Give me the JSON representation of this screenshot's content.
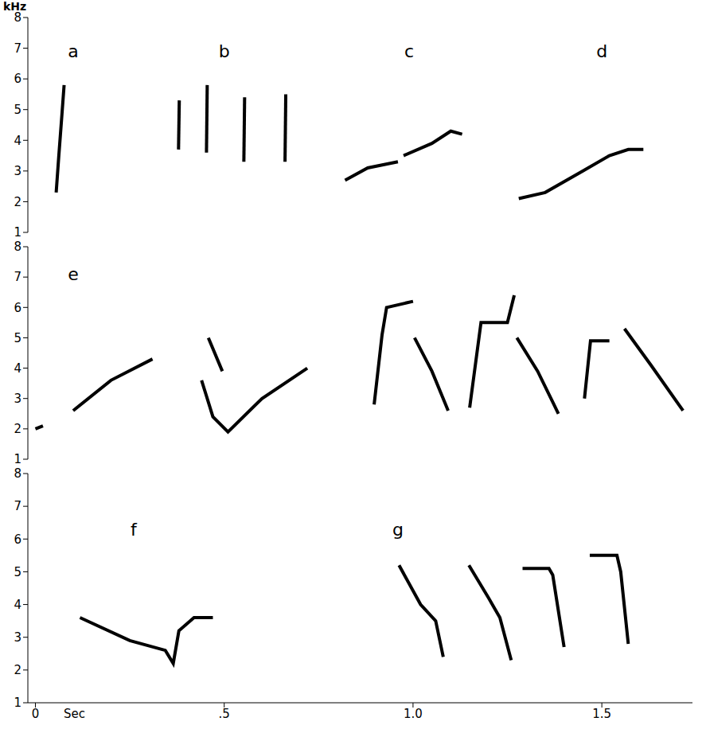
{
  "chart_data": [
    {
      "type": "line",
      "ylabel": "kHz",
      "xlim": [
        -0.02,
        1.74
      ],
      "ylim": [
        1,
        8
      ],
      "yticks": [
        1,
        2,
        3,
        4,
        5,
        6,
        7,
        8
      ],
      "tick_labels": "y",
      "annotations": [
        {
          "text": "a",
          "x": 0.1,
          "y": 6.9
        },
        {
          "text": "b",
          "x": 0.5,
          "y": 6.9
        },
        {
          "text": "c",
          "x": 0.99,
          "y": 6.9
        },
        {
          "text": "d",
          "x": 1.5,
          "y": 6.9
        }
      ],
      "series": [
        {
          "color": "#000000",
          "x": [
            0.055,
            0.062,
            0.07,
            0.076
          ],
          "values": [
            2.3,
            3.5,
            4.8,
            5.8
          ]
        },
        {
          "color": "#000000",
          "x": [
            0.379,
            0.381
          ],
          "values": [
            3.7,
            5.3
          ]
        },
        {
          "color": "#000000",
          "x": [
            0.453,
            0.455
          ],
          "values": [
            3.6,
            5.8
          ]
        },
        {
          "color": "#000000",
          "x": [
            0.552,
            0.554
          ],
          "values": [
            3.3,
            5.4
          ]
        },
        {
          "color": "#000000",
          "x": [
            0.661,
            0.663
          ],
          "values": [
            3.3,
            5.5
          ]
        },
        {
          "color": "#000000",
          "x": [
            0.82,
            0.88,
            0.96
          ],
          "values": [
            2.7,
            3.1,
            3.3
          ]
        },
        {
          "color": "#000000",
          "x": [
            0.975,
            1.05,
            1.1,
            1.13
          ],
          "values": [
            3.5,
            3.9,
            4.3,
            4.2
          ]
        },
        {
          "color": "#000000",
          "x": [
            1.28,
            1.35,
            1.45,
            1.52,
            1.57,
            1.61
          ],
          "values": [
            2.1,
            2.3,
            3.0,
            3.5,
            3.7,
            3.7
          ]
        }
      ]
    },
    {
      "type": "line",
      "xlim": [
        -0.02,
        1.74
      ],
      "ylim": [
        1,
        8
      ],
      "yticks": [
        1,
        2,
        3,
        4,
        5,
        6,
        7,
        8
      ],
      "tick_labels": "y",
      "annotations": [
        {
          "text": "e",
          "x": 0.1,
          "y": 7.1
        }
      ],
      "series": [
        {
          "color": "#000000",
          "x": [
            0.0,
            0.02
          ],
          "values": [
            2.0,
            2.1
          ]
        },
        {
          "color": "#000000",
          "x": [
            0.1,
            0.2,
            0.31
          ],
          "values": [
            2.6,
            3.6,
            4.3
          ]
        },
        {
          "color": "#000000",
          "x": [
            0.458,
            0.495
          ],
          "values": [
            5.0,
            3.9
          ]
        },
        {
          "color": "#000000",
          "x": [
            0.44,
            0.47,
            0.51,
            0.6,
            0.72
          ],
          "values": [
            3.6,
            2.4,
            1.9,
            3.0,
            4.0
          ]
        },
        {
          "color": "#000000",
          "x": [
            0.897,
            0.918,
            0.93,
            1.0
          ],
          "values": [
            2.8,
            5.1,
            6.0,
            6.2
          ]
        },
        {
          "color": "#000000",
          "x": [
            1.004,
            1.05,
            1.093
          ],
          "values": [
            5.0,
            3.9,
            2.6
          ]
        },
        {
          "color": "#000000",
          "x": [
            1.15,
            1.18,
            1.25,
            1.268
          ],
          "values": [
            2.7,
            5.5,
            5.5,
            6.4
          ]
        },
        {
          "color": "#000000",
          "x": [
            1.275,
            1.33,
            1.385
          ],
          "values": [
            5.0,
            3.9,
            2.5
          ]
        },
        {
          "color": "#000000",
          "x": [
            1.454,
            1.47,
            1.52
          ],
          "values": [
            3.0,
            4.9,
            4.9
          ]
        },
        {
          "color": "#000000",
          "x": [
            1.56,
            1.63,
            1.715
          ],
          "values": [
            5.3,
            4.1,
            2.6
          ]
        }
      ]
    },
    {
      "type": "line",
      "xlabel": "Sec",
      "xlim": [
        -0.02,
        1.74
      ],
      "xticks": [
        0,
        {
          "value": 0.5,
          "label": ".5"
        },
        {
          "value": 1,
          "label": "1.0"
        },
        1.5
      ],
      "ylim": [
        1,
        8
      ],
      "yticks": [
        1,
        2,
        3,
        4,
        5,
        6,
        7,
        8
      ],
      "annotations": [
        {
          "text": "f",
          "x": 0.26,
          "y": 6.3
        },
        {
          "text": "g",
          "x": 0.96,
          "y": 6.3
        }
      ],
      "series": [
        {
          "color": "#000000",
          "x": [
            0.118,
            0.25,
            0.344,
            0.365,
            0.38,
            0.42,
            0.47
          ],
          "values": [
            3.6,
            2.9,
            2.6,
            2.2,
            3.2,
            3.6,
            3.6
          ]
        },
        {
          "color": "#000000",
          "x": [
            0.963,
            1.02,
            1.06,
            1.08
          ],
          "values": [
            5.2,
            4.0,
            3.5,
            2.4
          ]
        },
        {
          "color": "#000000",
          "x": [
            1.148,
            1.2,
            1.23,
            1.26
          ],
          "values": [
            5.2,
            4.2,
            3.6,
            2.3
          ]
        },
        {
          "color": "#000000",
          "x": [
            1.29,
            1.36,
            1.37,
            1.4
          ],
          "values": [
            5.1,
            5.1,
            4.9,
            2.7
          ]
        },
        {
          "color": "#000000",
          "x": [
            1.468,
            1.54,
            1.55,
            1.57
          ],
          "values": [
            5.5,
            5.5,
            5.0,
            2.8
          ]
        }
      ]
    }
  ]
}
